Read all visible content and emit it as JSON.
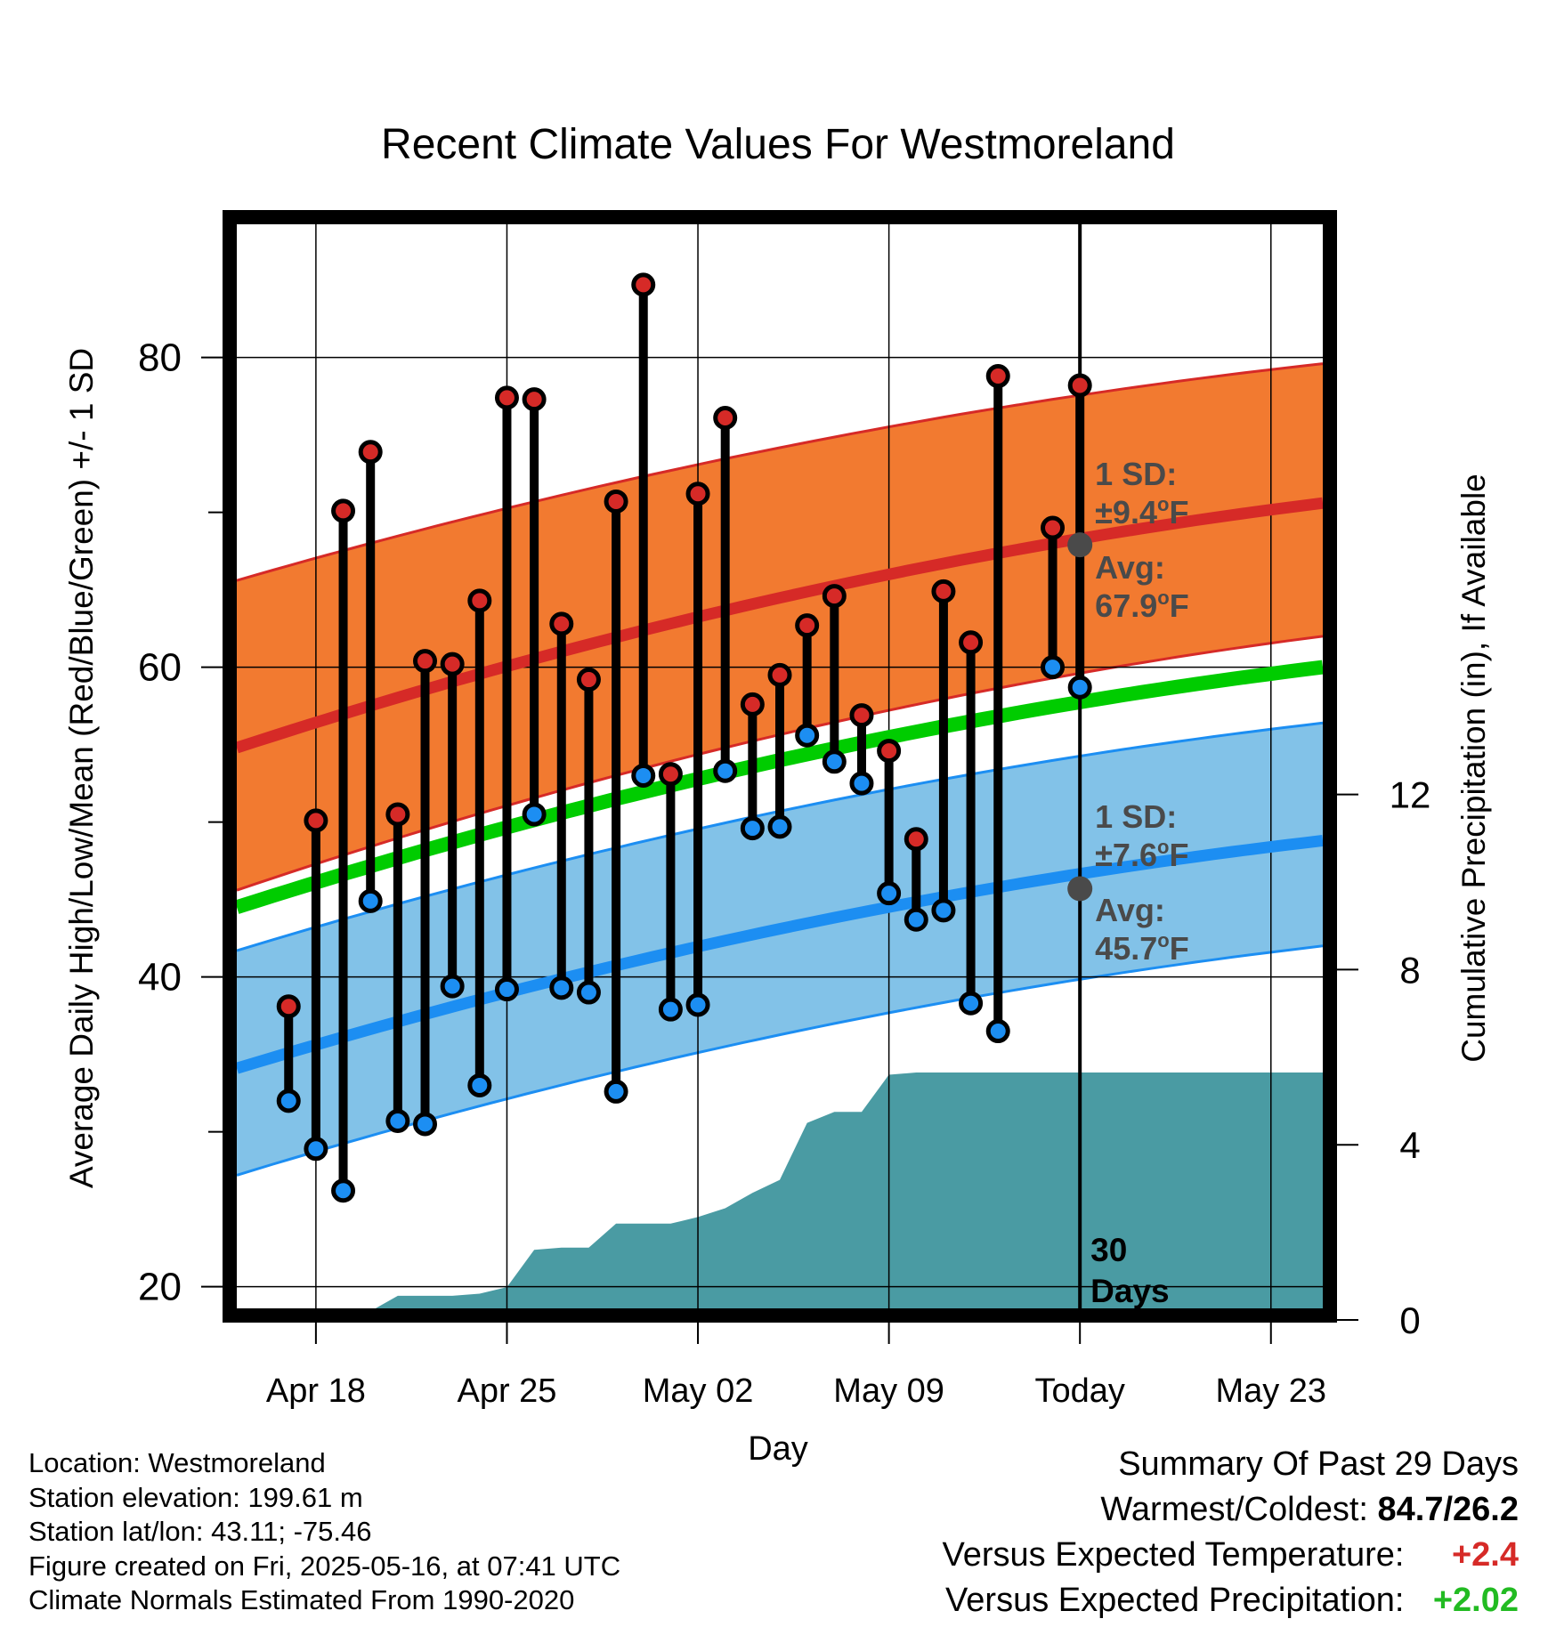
{
  "chart_data": {
    "type": "line",
    "title": "Recent Climate Values For Westmoreland",
    "xlabel": "Day",
    "ylabel": "Average Daily High/Low/Mean (Red/Blue/Green) +/- 1 SD",
    "y2label": "Cumulative Precipitation (in), If Available",
    "x_tick_labels": [
      "Apr 18",
      "Apr 25",
      "May 02",
      "May 09",
      "Today",
      "May 23"
    ],
    "x_tick_days": [
      2,
      9,
      16,
      23,
      30,
      37
    ],
    "xlim": [
      -0.9,
      38.9
    ],
    "y_ticks": [
      20,
      40,
      60,
      80
    ],
    "y_minor_ticks": [
      30,
      50,
      70
    ],
    "ylim": [
      18.6,
      88.6
    ],
    "y2_ticks": [
      0,
      4,
      8,
      12
    ],
    "y2lim": [
      0,
      16
    ],
    "today_day": 30,
    "today_label": [
      "30",
      "Days"
    ],
    "normals": {
      "high_mean": {
        "start": 54.8,
        "end": 70.6
      },
      "high_upper": {
        "start": 65.6,
        "end": 79.6
      },
      "high_lower": {
        "start": 45.6,
        "end": 62.0
      },
      "mean": {
        "start": 44.5,
        "end": 60.0
      },
      "low_mean": {
        "start": 34.1,
        "end": 48.8
      },
      "low_upper": {
        "start": 41.7,
        "end": 56.4
      },
      "low_lower": {
        "start": 27.2,
        "end": 42.0
      }
    },
    "high_annotation": {
      "line1": "1 SD:",
      "line2": "±9.4°F",
      "line3": "Avg:",
      "line4": "67.9°F",
      "avg": 67.9
    },
    "low_annotation": {
      "line1": "1 SD:",
      "line2": "±7.6°F",
      "line3": "Avg:",
      "line4": "45.7°F",
      "avg": 45.7
    },
    "daily": [
      {
        "day": 1,
        "high": 38.1,
        "low": 32.0
      },
      {
        "day": 2,
        "high": 50.1,
        "low": 28.9
      },
      {
        "day": 3,
        "high": 70.1,
        "low": 26.2
      },
      {
        "day": 4,
        "high": 73.9,
        "low": 44.9
      },
      {
        "day": 5,
        "high": 50.5,
        "low": 30.7
      },
      {
        "day": 6,
        "high": 60.4,
        "low": 30.5
      },
      {
        "day": 7,
        "high": 60.2,
        "low": 39.4
      },
      {
        "day": 8,
        "high": 64.3,
        "low": 33.0
      },
      {
        "day": 9,
        "high": 77.4,
        "low": 39.2
      },
      {
        "day": 10,
        "high": 77.3,
        "low": 50.5
      },
      {
        "day": 11,
        "high": 62.8,
        "low": 39.3
      },
      {
        "day": 12,
        "high": 59.2,
        "low": 39.0
      },
      {
        "day": 13,
        "high": 70.7,
        "low": 32.6
      },
      {
        "day": 14,
        "high": 84.7,
        "low": 53.0
      },
      {
        "day": 15,
        "high": 53.1,
        "low": 37.9
      },
      {
        "day": 16,
        "high": 71.2,
        "low": 38.2
      },
      {
        "day": 17,
        "high": 76.1,
        "low": 53.3
      },
      {
        "day": 18,
        "high": 57.6,
        "low": 49.6
      },
      {
        "day": 19,
        "high": 59.5,
        "low": 49.7
      },
      {
        "day": 20,
        "high": 62.7,
        "low": 55.6
      },
      {
        "day": 21,
        "high": 64.6,
        "low": 53.9
      },
      {
        "day": 22,
        "high": 56.9,
        "low": 52.5
      },
      {
        "day": 23,
        "high": 54.6,
        "low": 45.4
      },
      {
        "day": 24,
        "high": 48.9,
        "low": 43.7
      },
      {
        "day": 25,
        "high": 64.9,
        "low": 44.3
      },
      {
        "day": 26,
        "high": 61.6,
        "low": 38.3
      },
      {
        "day": 27,
        "high": 78.8,
        "low": 36.5
      },
      {
        "day": 29,
        "high": 69.0,
        "low": 60.0
      },
      {
        "day": 30,
        "high": 78.2,
        "low": 58.7
      }
    ],
    "precipitation": {
      "days": [
        -0.9,
        2.0,
        3.0,
        4.0,
        5.0,
        6.0,
        7.0,
        8.0,
        9.0,
        10.0,
        11.0,
        12.0,
        13.0,
        14.0,
        15.0,
        16.0,
        17.0,
        18.0,
        19.0,
        20.0,
        21.0,
        22.0,
        23.0,
        24.0,
        25.0,
        38.9
      ],
      "values": [
        0.0,
        0.0,
        0.2,
        0.2,
        0.55,
        0.55,
        0.55,
        0.6,
        0.75,
        1.6,
        1.65,
        1.65,
        2.2,
        2.2,
        2.2,
        2.35,
        2.55,
        2.9,
        3.2,
        4.5,
        4.75,
        4.75,
        5.6,
        5.65,
        5.65,
        5.65
      ]
    },
    "colors": {
      "high_band": "#f27a30",
      "high_line": "#d62a27",
      "low_band": "#82c2e8",
      "low_line": "#1c8ef2",
      "mean_line": "#00cc00",
      "precip": "#4a9ba3",
      "annotation": "#4a4a4a"
    }
  },
  "info": {
    "location": "Location: Westmoreland",
    "elevation": "Station elevation: 199.61 m",
    "latlon": "Station lat/lon: 43.11; -75.46",
    "created": "Figure created on Fri, 2025-05-16, at 07:41 UTC",
    "normals": "Climate Normals Estimated From 1990-2020"
  },
  "summary": {
    "title": "Summary Of Past 29 Days",
    "warm_cold_label": "Warmest/Coldest:",
    "warm_cold_value": "84.7/26.2",
    "temp_label": "Versus Expected Temperature:",
    "temp_value": "+2.4",
    "temp_color": "#d62a27",
    "precip_label": "Versus Expected Precipitation:",
    "precip_value": "+2.02",
    "precip_color": "#22bb22"
  }
}
